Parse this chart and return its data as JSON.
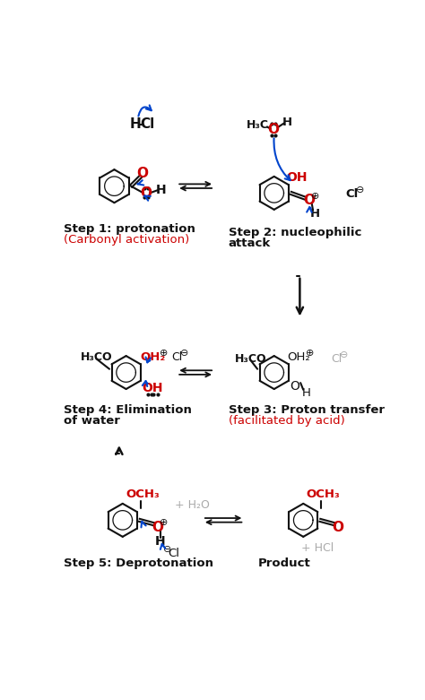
{
  "bg": "#ffffff",
  "black": "#111111",
  "red": "#cc0000",
  "blue": "#0044cc",
  "gray": "#aaaaaa",
  "step1_line1": "Step 1: protonation",
  "step1_line2": "(Carbonyl activation)",
  "step2_line1": "Step 2: nucleophilic",
  "step2_line2": "attack",
  "step3_line1": "Step 3: Proton transfer",
  "step3_line2": "(facilitated by acid)",
  "step4_line1": "Step 4: Elimination",
  "step4_line2": "of water",
  "step5_line1": "Step 5: Deprotonation",
  "product_line1": "Product"
}
